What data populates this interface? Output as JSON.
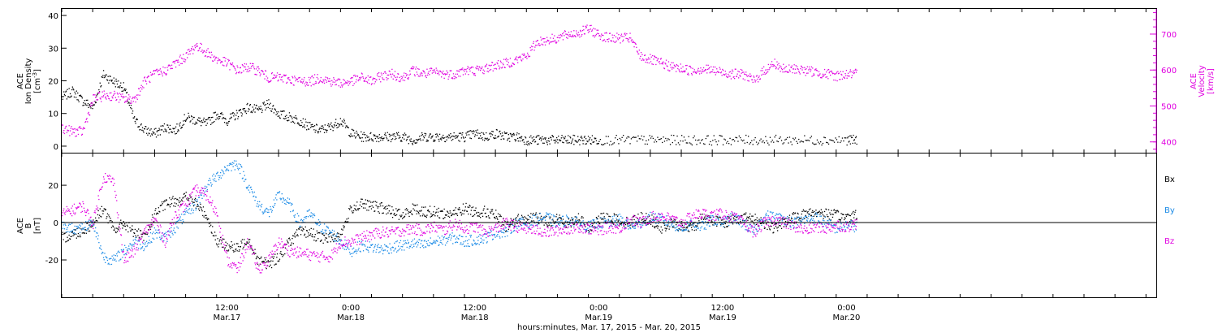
{
  "colors": {
    "black": "#000000",
    "magenta": "#e000e0",
    "blue": "#1a8ae6"
  },
  "xaxis": {
    "title": "hours:minutes, Mar. 17, 2015 - Mar. 20, 2015",
    "range_hours": [
      -4,
      102
    ],
    "ticks": [
      {
        "hour": 12,
        "time": "12:00",
        "date": "Mar.17"
      },
      {
        "hour": 24,
        "time": "0:00",
        "date": "Mar.18"
      },
      {
        "hour": 36,
        "time": "12:00",
        "date": "Mar.18"
      },
      {
        "hour": 48,
        "time": "0:00",
        "date": "Mar.19"
      },
      {
        "hour": 60,
        "time": "12:00",
        "date": "Mar.19"
      },
      {
        "hour": 72,
        "time": "0:00",
        "date": "Mar.20"
      }
    ]
  },
  "chart_data": [
    {
      "type": "scatter",
      "panel": "plasma",
      "ylabel_left": [
        "ACE",
        "Ion Density",
        "[cm^-3]"
      ],
      "ylabel_right": [
        "ACE",
        "Velocity",
        "[km/s]"
      ],
      "left_ylim": [
        -2,
        42
      ],
      "left_ticks": [
        0,
        10,
        20,
        30,
        40
      ],
      "right_ylim": [
        370,
        770
      ],
      "right_ticks": [
        400,
        500,
        600,
        700
      ],
      "series": [
        {
          "name": "Ion Density",
          "axis": "left",
          "color": "#000000",
          "x": [
            -4,
            -3,
            -2,
            -1,
            0,
            1,
            2,
            3,
            4,
            5,
            6,
            7,
            8,
            9,
            10,
            11,
            12,
            13,
            14,
            15,
            16,
            17,
            18,
            19,
            20,
            21,
            22,
            23,
            24,
            25,
            26,
            27,
            28,
            29,
            30,
            31,
            32,
            33,
            34,
            35,
            36,
            37,
            38,
            39,
            40,
            41,
            42,
            43,
            44,
            45,
            46,
            47,
            48,
            50,
            52,
            54,
            56,
            58,
            60,
            62,
            64,
            66,
            68,
            70,
            72,
            73
          ],
          "y": [
            15,
            17,
            14,
            12,
            22,
            20,
            18,
            8,
            5,
            4,
            6,
            5,
            9,
            8,
            7,
            10,
            8,
            10,
            12,
            11,
            13,
            10,
            9,
            8,
            6,
            5,
            6,
            8,
            4,
            3,
            3,
            3,
            3,
            3,
            2,
            3,
            3,
            3,
            3,
            3,
            4,
            3,
            4,
            3,
            3,
            2,
            2,
            2,
            2,
            2,
            2,
            2,
            2,
            2,
            2,
            2,
            2,
            2,
            2,
            2,
            2,
            2,
            2,
            2,
            2,
            2
          ]
        },
        {
          "name": "Velocity",
          "axis": "right",
          "color": "#e000e0",
          "x": [
            -4,
            -3,
            -2,
            -1,
            0,
            1,
            2,
            3,
            4,
            5,
            6,
            7,
            8,
            9,
            10,
            11,
            12,
            13,
            14,
            15,
            16,
            17,
            18,
            19,
            20,
            21,
            22,
            23,
            24,
            25,
            26,
            27,
            28,
            29,
            30,
            31,
            32,
            33,
            34,
            35,
            36,
            37,
            38,
            39,
            40,
            41,
            42,
            43,
            44,
            45,
            46,
            47,
            48,
            49,
            50,
            51,
            52,
            53,
            54,
            55,
            56,
            57,
            58,
            59,
            60,
            61,
            62,
            63,
            64,
            65,
            66,
            67,
            68,
            69,
            70,
            71,
            72,
            73
          ],
          "y": [
            440,
            430,
            430,
            520,
            530,
            530,
            520,
            520,
            570,
            590,
            600,
            620,
            640,
            670,
            650,
            630,
            620,
            600,
            610,
            600,
            580,
            580,
            575,
            570,
            570,
            580,
            570,
            565,
            570,
            580,
            570,
            585,
            590,
            580,
            600,
            590,
            595,
            590,
            590,
            600,
            600,
            605,
            615,
            620,
            630,
            640,
            680,
            685,
            690,
            700,
            705,
            715,
            700,
            690,
            690,
            690,
            640,
            630,
            620,
            610,
            605,
            600,
            605,
            600,
            595,
            590,
            590,
            570,
            600,
            620,
            600,
            605,
            600,
            595,
            590,
            585,
            590,
            590
          ]
        }
      ]
    },
    {
      "type": "scatter",
      "panel": "magnetic field",
      "ylabel_left": [
        "ACE",
        "B",
        "[nT]"
      ],
      "ylim": [
        -40,
        37
      ],
      "left_ticks": [
        -20,
        0,
        20
      ],
      "zero_line": 0,
      "series": [
        {
          "name": "Bx",
          "color": "#000000",
          "x": [
            -4,
            -3,
            -2,
            -1,
            0,
            1,
            2,
            3,
            4,
            5,
            6,
            7,
            8,
            9,
            10,
            11,
            12,
            13,
            14,
            15,
            16,
            17,
            18,
            19,
            20,
            21,
            22,
            23,
            24,
            25,
            26,
            27,
            28,
            29,
            30,
            31,
            32,
            33,
            34,
            35,
            36,
            37,
            38,
            39,
            40,
            41,
            42,
            43,
            44,
            45,
            46,
            47,
            48,
            49,
            50,
            51,
            52,
            53,
            54,
            55,
            56,
            57,
            58,
            59,
            60,
            61,
            62,
            63,
            64,
            65,
            66,
            67,
            68,
            69,
            70,
            71,
            72,
            73
          ],
          "y": [
            -8,
            -6,
            -4,
            0,
            8,
            -4,
            0,
            -5,
            -8,
            5,
            10,
            12,
            14,
            10,
            4,
            -10,
            -12,
            -14,
            -8,
            -20,
            -22,
            -18,
            -10,
            -5,
            -5,
            -8,
            -8,
            -6,
            8,
            10,
            9,
            8,
            6,
            4,
            8,
            6,
            6,
            5,
            5,
            8,
            6,
            6,
            4,
            -2,
            2,
            2,
            3,
            1,
            2,
            0,
            3,
            -4,
            2,
            3,
            1,
            0,
            3,
            2,
            -3,
            0,
            -2,
            -3,
            3,
            2,
            0,
            2,
            3,
            2,
            0,
            -3,
            1,
            3,
            5,
            6,
            5,
            4,
            3,
            5
          ]
        },
        {
          "name": "By",
          "color": "#1a8ae6",
          "x": [
            -4,
            -3,
            -2,
            -1,
            0,
            1,
            2,
            3,
            4,
            5,
            6,
            7,
            8,
            9,
            10,
            11,
            12,
            13,
            14,
            15,
            16,
            17,
            18,
            19,
            20,
            21,
            22,
            23,
            24,
            25,
            26,
            27,
            28,
            29,
            30,
            31,
            32,
            33,
            34,
            35,
            36,
            37,
            38,
            39,
            40,
            41,
            42,
            43,
            44,
            45,
            46,
            47,
            48,
            49,
            50,
            51,
            52,
            53,
            54,
            55,
            56,
            57,
            58,
            59,
            60,
            61,
            62,
            63,
            64,
            65,
            66,
            67,
            68,
            69,
            70,
            71,
            72,
            73
          ],
          "y": [
            -2,
            -3,
            -2,
            0,
            -18,
            -20,
            -15,
            -10,
            -12,
            -5,
            -8,
            -2,
            5,
            10,
            20,
            25,
            30,
            32,
            20,
            10,
            5,
            15,
            10,
            0,
            5,
            -2,
            -5,
            -10,
            -15,
            -12,
            -13,
            -14,
            -13,
            -12,
            -11,
            -12,
            -10,
            -9,
            -8,
            -10,
            -9,
            -8,
            -5,
            -5,
            0,
            0,
            2,
            3,
            0,
            2,
            0,
            -2,
            0,
            0,
            2,
            -2,
            0,
            3,
            2,
            0,
            -3,
            0,
            -2,
            2,
            0,
            3,
            0,
            -5,
            4,
            3,
            2,
            0,
            2,
            3,
            0,
            -3,
            -1,
            -2
          ]
        },
        {
          "name": "Bz",
          "color": "#e000e0",
          "x": [
            -4,
            -3,
            -2,
            -1,
            0,
            1,
            2,
            3,
            4,
            5,
            6,
            7,
            8,
            9,
            10,
            11,
            12,
            13,
            14,
            15,
            16,
            17,
            18,
            19,
            20,
            21,
            22,
            23,
            24,
            25,
            26,
            27,
            28,
            29,
            30,
            31,
            32,
            33,
            34,
            35,
            36,
            37,
            38,
            39,
            40,
            41,
            42,
            43,
            44,
            45,
            46,
            47,
            48,
            49,
            50,
            51,
            52,
            53,
            54,
            55,
            56,
            57,
            58,
            59,
            60,
            61,
            62,
            63,
            64,
            65,
            66,
            67,
            68,
            69,
            70,
            71,
            72,
            73
          ],
          "y": [
            5,
            7,
            9,
            0,
            25,
            22,
            -20,
            -15,
            -5,
            2,
            -10,
            5,
            10,
            18,
            15,
            5,
            -20,
            -25,
            -10,
            -25,
            -20,
            -10,
            -15,
            -16,
            -17,
            -18,
            -18,
            -10,
            -10,
            -8,
            -6,
            -5,
            -5,
            -4,
            -3,
            -4,
            -2,
            -4,
            0,
            -3,
            -2,
            -5,
            -3,
            0,
            -2,
            -3,
            -4,
            -5,
            -4,
            -3,
            -2,
            -3,
            -4,
            -2,
            -3,
            2,
            0,
            3,
            4,
            2,
            0,
            4,
            5,
            4,
            5,
            3,
            0,
            -5,
            0,
            2,
            0,
            -2,
            -4,
            -2,
            -3,
            -1,
            -2,
            0
          ]
        }
      ],
      "legend": {
        "placement": "right",
        "entries": [
          "Bx",
          "By",
          "Bz"
        ]
      }
    }
  ]
}
